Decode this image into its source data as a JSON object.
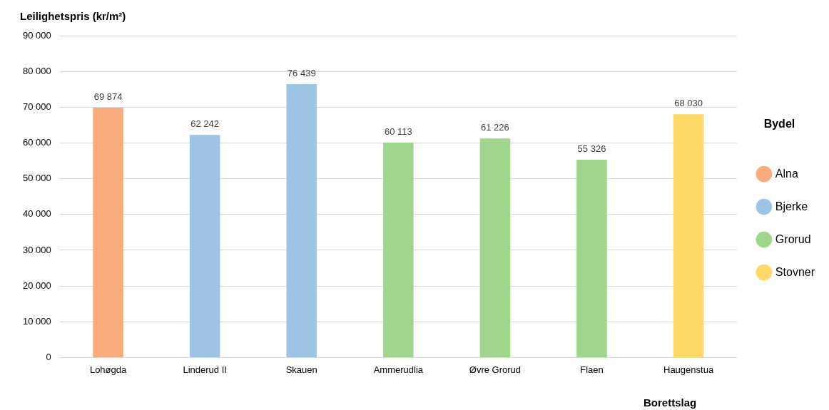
{
  "chart_data": {
    "type": "bar",
    "ylabel": "Leilighetspris (kr/m²)",
    "xlabel": "Borettslag",
    "legend_title": "Bydel",
    "legend": "right",
    "categories": [
      "Lohøgda",
      "Linderud II",
      "Skauen",
      "Ammerudlia",
      "Øvre Grorud",
      "Flaen",
      "Haugenstua"
    ],
    "series": [
      {
        "name": "Alna",
        "color": "#f9ab7b",
        "values": [
          69874,
          null,
          null,
          null,
          null,
          null,
          null
        ],
        "value_labels": [
          "69 874",
          null,
          null,
          null,
          null,
          null,
          null
        ]
      },
      {
        "name": "Bjerke",
        "color": "#9dc3e6",
        "values": [
          null,
          62242,
          76439,
          null,
          null,
          null,
          null
        ],
        "value_labels": [
          null,
          "62 242",
          "76 439",
          null,
          null,
          null,
          null
        ]
      },
      {
        "name": "Grorud",
        "color": "#a0d58d",
        "values": [
          null,
          null,
          null,
          60113,
          61226,
          55326,
          null
        ],
        "value_labels": [
          null,
          null,
          null,
          "60 113",
          "61 226",
          "55 326",
          null
        ]
      },
      {
        "name": "Stovner",
        "color": "#ffd966",
        "values": [
          null,
          null,
          null,
          null,
          null,
          null,
          68030
        ],
        "value_labels": [
          null,
          null,
          null,
          null,
          null,
          null,
          "68 030"
        ]
      }
    ],
    "ylim": [
      0,
      90000
    ],
    "yticks": [
      {
        "value": 0,
        "label": "0"
      },
      {
        "value": 10000,
        "label": "10 000"
      },
      {
        "value": 20000,
        "label": "20 000"
      },
      {
        "value": 30000,
        "label": "30 000"
      },
      {
        "value": 40000,
        "label": "40 000"
      },
      {
        "value": 50000,
        "label": "50 000"
      },
      {
        "value": 60000,
        "label": "60 000"
      },
      {
        "value": 70000,
        "label": "70 000"
      },
      {
        "value": 80000,
        "label": "80 000"
      },
      {
        "value": 90000,
        "label": "90 000"
      }
    ],
    "grid": "y"
  }
}
